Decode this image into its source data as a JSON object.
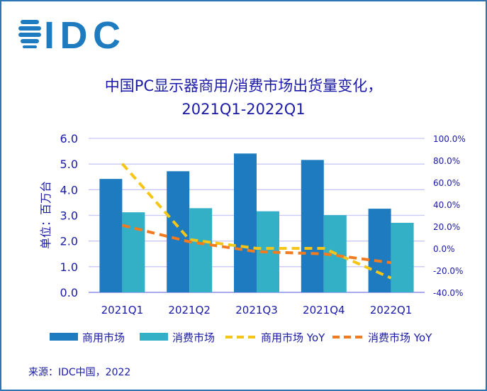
{
  "logo_text": "IDC",
  "chart_data": {
    "type": "bar",
    "title": "中国PC显示器商用/消费市场出货量变化，",
    "subtitle": "2021Q1-2022Q1",
    "categories": [
      "2021Q1",
      "2021Q2",
      "2021Q3",
      "2021Q4",
      "2022Q1"
    ],
    "ylabel": "单位：百万台",
    "ylim": [
      0,
      6
    ],
    "yticks": [
      "0.0",
      "1.0",
      "2.0",
      "3.0",
      "4.0",
      "5.0",
      "6.0"
    ],
    "y2lim": [
      -40,
      100
    ],
    "y2ticks": [
      "-40.0%",
      "-20.0%",
      "0.0%",
      "20.0%",
      "40.0%",
      "60.0%",
      "80.0%",
      "100.0%"
    ],
    "grid": true,
    "legend_position": "bottom",
    "series": [
      {
        "name": "商用市场",
        "kind": "bar",
        "axis": "left",
        "color": "#1f7bbf",
        "values": [
          4.42,
          4.72,
          5.41,
          5.16,
          3.26
        ]
      },
      {
        "name": "消费市场",
        "kind": "bar",
        "axis": "left",
        "color": "#33b0c6",
        "values": [
          3.12,
          3.28,
          3.16,
          3.01,
          2.71
        ]
      },
      {
        "name": "商用市场 YoY",
        "kind": "line",
        "axis": "right",
        "color": "#f5c518",
        "values": [
          77,
          8,
          0,
          0,
          -27
        ]
      },
      {
        "name": "消费市场 YoY",
        "kind": "line",
        "axis": "right",
        "color": "#f07b20",
        "values": [
          21,
          6,
          -3,
          -5,
          -13
        ]
      }
    ]
  },
  "source": "来源：IDC中国，2022"
}
